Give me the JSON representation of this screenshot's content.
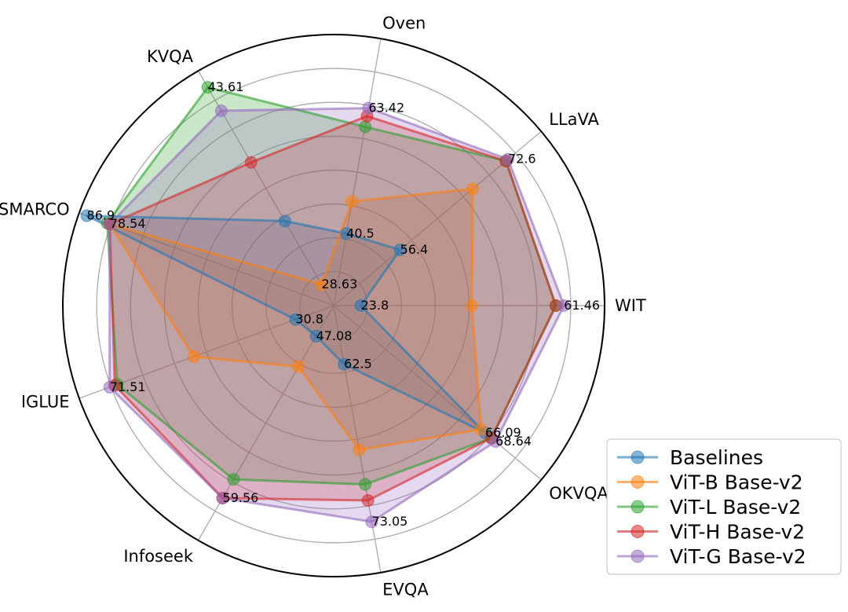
{
  "chart_data": {
    "type": "radar",
    "axes": [
      "WIT",
      "LLaVA",
      "Oven",
      "KVQA",
      "MSMARCO",
      "IGLUE",
      "Infoseek",
      "EVQA",
      "OKVQA"
    ],
    "grid": true,
    "legend_position": "bottom-right",
    "series": [
      {
        "name": "Baselines",
        "color": "#1f77b4",
        "values": [
          0.1,
          0.32,
          0.27,
          0.36,
          0.97,
          0.15,
          0.13,
          0.22,
          0.73
        ]
      },
      {
        "name": "ViT-B Base-v2",
        "color": "#ff7f0e",
        "values": [
          0.51,
          0.67,
          0.39,
          0.09,
          0.88,
          0.55,
          0.26,
          0.54,
          0.71
        ]
      },
      {
        "name": "ViT-L Base-v2",
        "color": "#2ca02c",
        "values": [
          0.82,
          0.83,
          0.67,
          0.93,
          0.89,
          0.85,
          0.74,
          0.67,
          0.76
        ]
      },
      {
        "name": "ViT-H Base-v2",
        "color": "#d62728",
        "values": [
          0.82,
          0.83,
          0.71,
          0.61,
          0.88,
          0.86,
          0.82,
          0.73,
          0.76
        ]
      },
      {
        "name": "ViT-G Base-v2",
        "color": "#9467bd",
        "values": [
          0.85,
          0.84,
          0.74,
          0.83,
          0.88,
          0.88,
          0.82,
          0.81,
          0.78
        ]
      }
    ],
    "annotations": [
      {
        "axis": "WIT",
        "series": "Baselines",
        "label": "23.8"
      },
      {
        "axis": "LLaVA",
        "series": "Baselines",
        "label": "56.4"
      },
      {
        "axis": "Oven",
        "series": "Baselines",
        "label": "40.5"
      },
      {
        "axis": "MSMARCO",
        "series": "Baselines",
        "label": "86.9"
      },
      {
        "axis": "IGLUE",
        "series": "Baselines",
        "label": "30.8"
      },
      {
        "axis": "Infoseek",
        "series": "Baselines",
        "label": "47.08"
      },
      {
        "axis": "EVQA",
        "series": "Baselines",
        "label": "62.5"
      },
      {
        "axis": "OKVQA",
        "series": "Baselines",
        "label": "66.09"
      },
      {
        "axis": "KVQA",
        "series": "ViT-B Base-v2",
        "label": "28.63"
      },
      {
        "axis": "KVQA",
        "series": "ViT-L Base-v2",
        "label": "43.61"
      },
      {
        "axis": "MSMARCO",
        "series": "ViT-H Base-v2",
        "label": "78.54"
      },
      {
        "axis": "WIT",
        "series": "ViT-G Base-v2",
        "label": "61.46"
      },
      {
        "axis": "LLaVA",
        "series": "ViT-G Base-v2",
        "label": "72.6"
      },
      {
        "axis": "Oven",
        "series": "ViT-G Base-v2",
        "label": "63.42"
      },
      {
        "axis": "IGLUE",
        "series": "ViT-G Base-v2",
        "label": "71.51"
      },
      {
        "axis": "Infoseek",
        "series": "ViT-G Base-v2",
        "label": "59.56"
      },
      {
        "axis": "EVQA",
        "series": "ViT-G Base-v2",
        "label": "73.05"
      },
      {
        "axis": "OKVQA",
        "series": "ViT-G Base-v2",
        "label": "68.64"
      }
    ]
  }
}
